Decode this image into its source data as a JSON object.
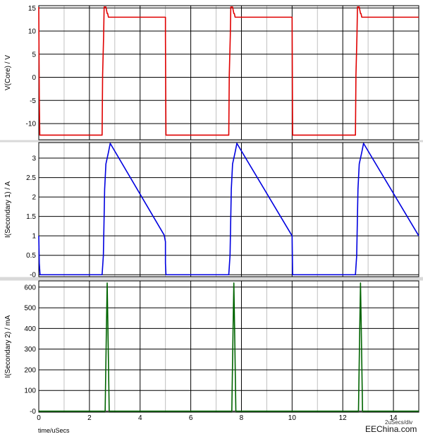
{
  "chart_data": {
    "type": "line",
    "xlabel": "time/uSecs",
    "xlim": [
      0,
      15
    ],
    "xticks": [
      "0",
      "2",
      "4",
      "6",
      "8",
      "10",
      "12",
      "14"
    ],
    "grid": true,
    "watermark": "EEChina.com",
    "corner_label": "2uSecs/div",
    "panels": [
      {
        "ylabel": "V(Core) / V",
        "ylim": [
          -13.5,
          15.5
        ],
        "yticks": [
          "-10",
          "-5",
          "0",
          "5",
          "10",
          "15"
        ],
        "color": "#e00000",
        "series": {
          "x": [
            0,
            0.02,
            0.04,
            0.06,
            2.5,
            2.52,
            2.56,
            2.58,
            2.62,
            2.6,
            2.65,
            2.7,
            2.72,
            2.75,
            2.8,
            5.0,
            5.0,
            5.02,
            7.5,
            7.52,
            7.56,
            7.58,
            7.6,
            7.65,
            7.7,
            7.72,
            7.75,
            7.8,
            10.0,
            10.02,
            12.5,
            12.52,
            12.56,
            12.58,
            12.6,
            12.65,
            12.7,
            12.72,
            12.75,
            12.8,
            15
          ],
          "y": [
            15.2,
            -4,
            -12.5,
            -12.5,
            -12.5,
            0.5,
            9,
            15.2,
            15.2,
            15.2,
            15.2,
            13.8,
            13.8,
            13,
            13,
            13,
            9,
            -12.5,
            -12.5,
            0.5,
            9,
            15.2,
            15.2,
            15.2,
            13.8,
            13.8,
            13,
            13,
            13,
            -12.5,
            -12.5,
            0.5,
            9,
            15.2,
            15.2,
            15.2,
            13.8,
            13.8,
            13,
            13,
            13
          ]
        }
      },
      {
        "ylabel": "I(Secondary 1) / A",
        "ylim": [
          -0.05,
          3.4
        ],
        "yticks": [
          "-0",
          "0.5",
          "1",
          "1.5",
          "2",
          "2.5",
          "3"
        ],
        "color": "#0000e0",
        "series": {
          "x": [
            0,
            0.02,
            0.05,
            2.5,
            2.55,
            2.6,
            2.65,
            2.7,
            2.75,
            2.82,
            4.95,
            5.0,
            5.0,
            5.02,
            7.5,
            7.55,
            7.6,
            7.65,
            7.7,
            7.75,
            7.82,
            10.0,
            10.02,
            12.5,
            12.55,
            12.6,
            12.65,
            12.7,
            12.75,
            12.82,
            15
          ],
          "y": [
            1.0,
            0.3,
            0,
            0,
            0.5,
            2.2,
            2.85,
            3.0,
            3.15,
            3.38,
            1.02,
            0.85,
            0.3,
            0,
            0,
            0.5,
            2.2,
            2.85,
            3.0,
            3.15,
            3.38,
            1.0,
            0,
            0,
            0.5,
            2.2,
            2.85,
            3.0,
            3.15,
            3.38,
            1.0
          ]
        }
      },
      {
        "ylabel": "I(Secondary 2) / mA",
        "ylim": [
          -5,
          630
        ],
        "yticks": [
          "-0",
          "100",
          "200",
          "300",
          "400",
          "500",
          "600"
        ],
        "color": "#006400",
        "series": {
          "x": [
            0,
            2.62,
            2.67,
            2.7,
            2.73,
            2.78,
            7.62,
            7.67,
            7.7,
            7.73,
            7.78,
            12.62,
            12.67,
            12.7,
            12.73,
            12.78,
            15
          ],
          "y": [
            0,
            0,
            400,
            620,
            400,
            0,
            0,
            400,
            620,
            400,
            0,
            0,
            400,
            620,
            400,
            0,
            0
          ]
        }
      }
    ]
  }
}
